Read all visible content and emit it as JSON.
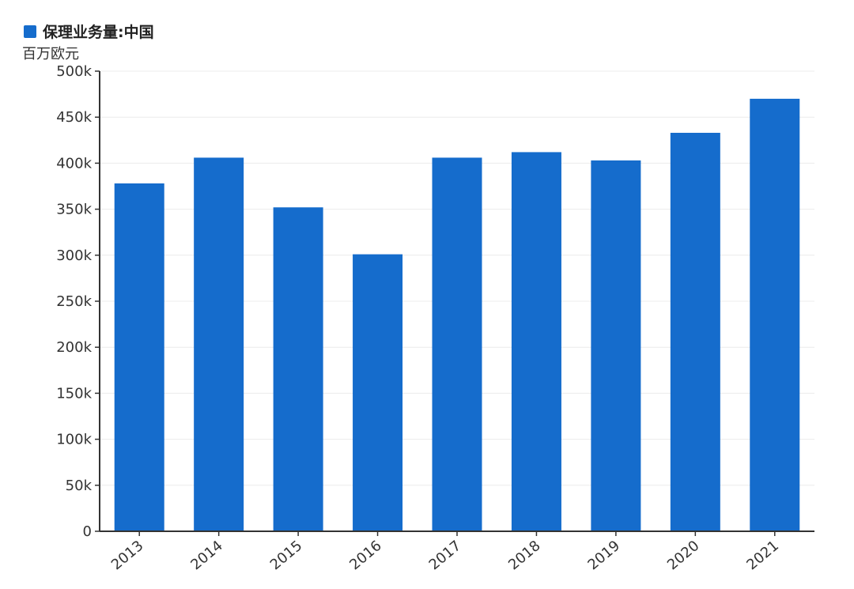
{
  "legend": {
    "label": "保理业务量:中国",
    "color": "#156ccc"
  },
  "unit": "百万欧元",
  "chart_data": {
    "type": "bar",
    "categories": [
      "2013",
      "2014",
      "2015",
      "2016",
      "2017",
      "2018",
      "2019",
      "2020",
      "2021"
    ],
    "series": [
      {
        "name": "保理业务量:中国",
        "values": [
          378000,
          406000,
          352000,
          301000,
          406000,
          412000,
          403000,
          433000,
          470000
        ]
      }
    ],
    "ylim": [
      0,
      500000
    ],
    "yticks": [
      0,
      50000,
      100000,
      150000,
      200000,
      250000,
      300000,
      350000,
      400000,
      450000,
      500000
    ],
    "ytick_labels": [
      "0",
      "50k",
      "100k",
      "150k",
      "200k",
      "250k",
      "300k",
      "350k",
      "400k",
      "450k",
      "500k"
    ],
    "ylabel": "百万欧元",
    "xlabel": "",
    "grid": true,
    "legend_position": "top-left",
    "bar_color": "#156ccc"
  }
}
